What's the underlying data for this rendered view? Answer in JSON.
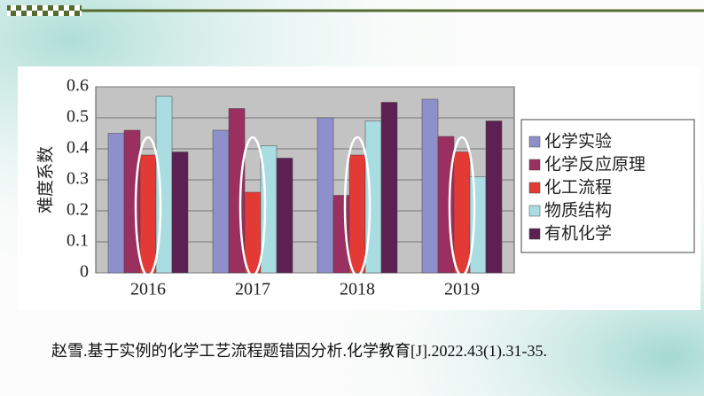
{
  "chart_data": {
    "type": "bar",
    "y_label": "难度系数",
    "categories": [
      "2016",
      "2017",
      "2018",
      "2019"
    ],
    "series": [
      {
        "name": "化学实验",
        "color": "#8e90cc",
        "values": [
          0.45,
          0.46,
          0.5,
          0.56
        ]
      },
      {
        "name": "化学反应原理",
        "color": "#9a305f",
        "values": [
          0.46,
          0.53,
          0.25,
          0.44
        ]
      },
      {
        "name": "化工流程",
        "color": "#e33a35",
        "values": [
          0.38,
          0.26,
          0.38,
          0.39
        ]
      },
      {
        "name": "物质结构",
        "color": "#a9dde2",
        "values": [
          0.57,
          0.41,
          0.49,
          0.31
        ]
      },
      {
        "name": "有机化学",
        "color": "#5c2152",
        "values": [
          0.39,
          0.37,
          0.55,
          0.49
        ]
      }
    ],
    "ylim": [
      0,
      0.6
    ],
    "yticks": [
      0,
      0.1,
      0.2,
      0.3,
      0.4,
      0.5,
      0.6
    ],
    "grid": true
  },
  "citation": "赵雪.基于实例的化学工艺流程题错因分析.化学教育[J].2022.43(1).31-35."
}
